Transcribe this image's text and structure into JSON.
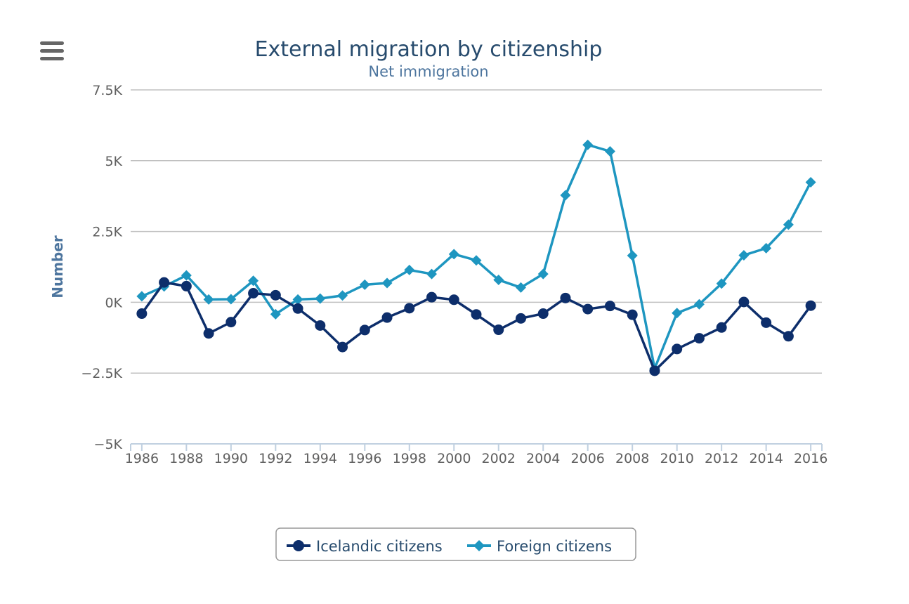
{
  "menu": {
    "icon": "hamburger-menu-icon"
  },
  "chart_data": {
    "type": "line",
    "title": "External migration by citizenship",
    "subtitle": "Net immigration",
    "ylabel": "Number",
    "ylim": [
      -5000,
      7500
    ],
    "y_ticks": [
      -5000,
      -2500,
      0,
      2500,
      5000,
      7500
    ],
    "y_tick_labels": [
      "−5K",
      "−2.5K",
      "0K",
      "2.5K",
      "5K",
      "7.5K"
    ],
    "xlim": [
      1985.5,
      2016.5
    ],
    "x_ticks": [
      1986,
      1988,
      1990,
      1992,
      1994,
      1996,
      1998,
      2000,
      2002,
      2004,
      2006,
      2008,
      2010,
      2012,
      2014,
      2016
    ],
    "x_tick_labels": [
      "1986",
      "1988",
      "1990",
      "1992",
      "1994",
      "1996",
      "1998",
      "2000",
      "2002",
      "2004",
      "2006",
      "2008",
      "2010",
      "2012",
      "2014",
      "2016"
    ],
    "x": [
      1986,
      1987,
      1988,
      1989,
      1990,
      1991,
      1992,
      1993,
      1994,
      1995,
      1996,
      1997,
      1998,
      1999,
      2000,
      2001,
      2002,
      2003,
      2004,
      2005,
      2006,
      2007,
      2008,
      2009,
      2010,
      2011,
      2012,
      2013,
      2014,
      2015,
      2016
    ],
    "grid": true,
    "legend_position": "bottom-center",
    "series": [
      {
        "name": "Icelandic citizens",
        "color": "#0d2e6b",
        "marker": "circle",
        "values": [
          -400,
          700,
          570,
          -1100,
          -700,
          320,
          250,
          -220,
          -820,
          -1580,
          -980,
          -540,
          -210,
          180,
          90,
          -430,
          -970,
          -570,
          -400,
          150,
          -240,
          -130,
          -440,
          -2420,
          -1650,
          -1270,
          -890,
          10,
          -720,
          -1200,
          -120
        ]
      },
      {
        "name": "Foreign citizens",
        "color": "#1e96c0",
        "marker": "diamond",
        "values": [
          210,
          560,
          950,
          100,
          110,
          760,
          -420,
          100,
          130,
          240,
          620,
          680,
          1140,
          1000,
          1700,
          1480,
          790,
          520,
          1000,
          3780,
          5560,
          5330,
          1650,
          -2340,
          -380,
          -70,
          660,
          1660,
          1910,
          2740,
          4240
        ]
      }
    ]
  }
}
